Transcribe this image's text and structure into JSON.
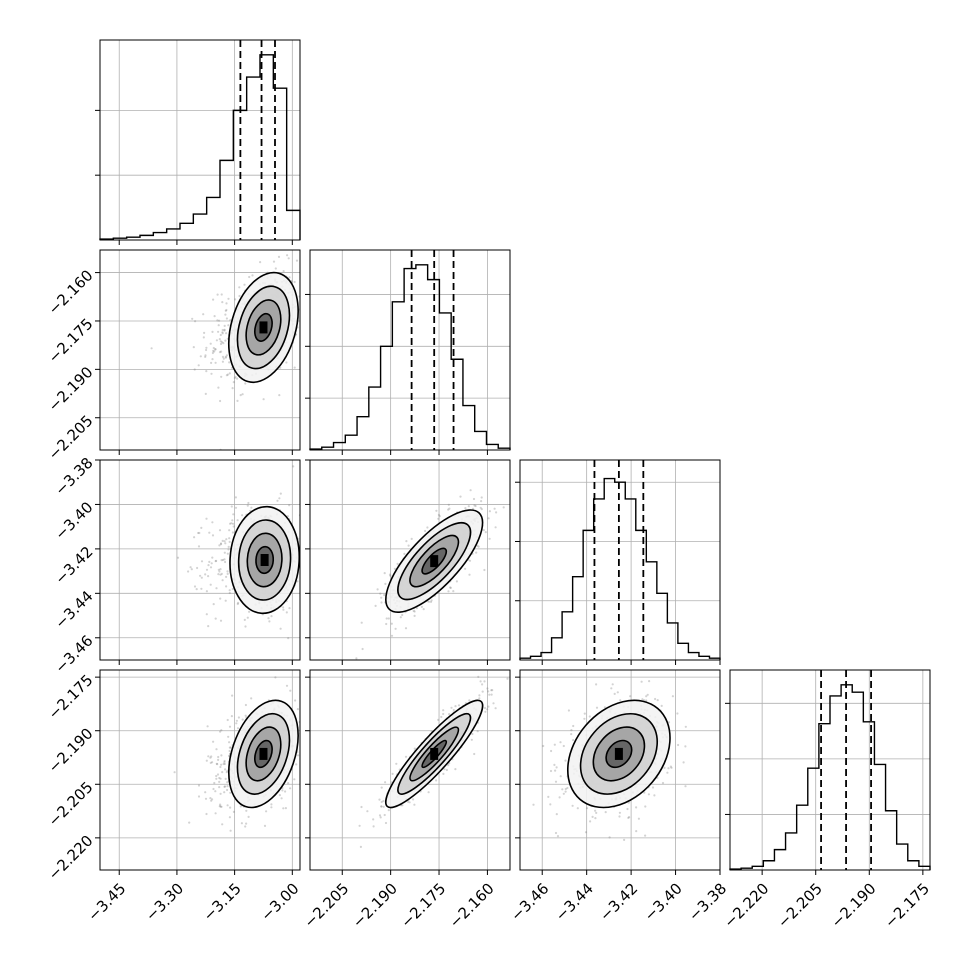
{
  "chart_data": {
    "type": "corner",
    "n_params": 4,
    "params": [
      {
        "range": [
          -3.5,
          -2.98
        ],
        "ticks": [
          -3.45,
          -3.3,
          -3.15,
          -3.0
        ],
        "tick_labels": [
          "−3.45",
          "−3.30",
          "−3.15",
          "−3.00"
        ],
        "quantiles": [
          -3.135,
          -3.08,
          -3.045
        ],
        "median": -3.08,
        "hist": [
          0.005,
          0.01,
          0.015,
          0.025,
          0.04,
          0.06,
          0.09,
          0.14,
          0.23,
          0.43,
          0.7,
          0.88,
          1.0,
          0.82,
          0.16
        ],
        "hist_ticks": [
          0.35,
          0.7
        ]
      },
      {
        "range": [
          -2.215,
          -2.153
        ],
        "ticks": [
          -2.205,
          -2.19,
          -2.175,
          -2.16
        ],
        "tick_labels": [
          "−2.205",
          "−2.190",
          "−2.175",
          "−2.160"
        ],
        "quantiles": [
          -2.1835,
          -2.1765,
          -2.1705
        ],
        "median": -2.1765,
        "hist": [
          0.005,
          0.015,
          0.04,
          0.08,
          0.18,
          0.34,
          0.56,
          0.8,
          0.98,
          1.0,
          0.92,
          0.74,
          0.49,
          0.24,
          0.1,
          0.03,
          0.01
        ],
        "hist_ticks": [
          0.28,
          0.56,
          0.84
        ]
      },
      {
        "range": [
          -3.47,
          -3.38
        ],
        "ticks": [
          -3.46,
          -3.44,
          -3.42,
          -3.4,
          -3.38
        ],
        "tick_labels": [
          "−3.46",
          "−3.44",
          "−3.42",
          "−3.40",
          "−3.38"
        ],
        "quantiles": [
          -3.4365,
          -3.4255,
          -3.4145
        ],
        "median": -3.4255,
        "hist": [
          0.01,
          0.02,
          0.04,
          0.12,
          0.26,
          0.45,
          0.7,
          0.87,
          0.98,
          0.96,
          0.87,
          0.7,
          0.53,
          0.36,
          0.2,
          0.09,
          0.04,
          0.02,
          0.01
        ],
        "hist_ticks": [
          0.32,
          0.64,
          0.96
        ]
      },
      {
        "range": [
          -2.229,
          -2.173
        ],
        "ticks": [
          -2.22,
          -2.205,
          -2.19,
          -2.175
        ],
        "tick_labels": [
          "−2.220",
          "−2.205",
          "−2.190",
          "−2.175"
        ],
        "quantiles": [
          -2.2035,
          -2.1965,
          -2.1895
        ],
        "median": -2.1965,
        "hist": [
          0.005,
          0.01,
          0.02,
          0.05,
          0.11,
          0.2,
          0.35,
          0.55,
          0.79,
          0.94,
          1.0,
          0.96,
          0.8,
          0.57,
          0.32,
          0.14,
          0.05,
          0.02
        ],
        "hist_ticks": [
          0.3,
          0.6,
          0.9
        ]
      }
    ],
    "pairs": [
      {
        "x": 0,
        "y": 1,
        "center": [
          -3.075,
          -2.177
        ],
        "sigma": [
          0.045,
          0.0085
        ],
        "corr": 0.3
      },
      {
        "x": 0,
        "y": 2,
        "center": [
          -3.072,
          -3.425
        ],
        "sigma": [
          0.045,
          0.012
        ],
        "corr": 0.05
      },
      {
        "x": 1,
        "y": 2,
        "center": [
          -2.1765,
          -3.4255
        ],
        "sigma": [
          0.0075,
          0.0115
        ],
        "corr": 0.75
      },
      {
        "x": 0,
        "y": 3,
        "center": [
          -3.075,
          -2.1965
        ],
        "sigma": [
          0.045,
          0.0075
        ],
        "corr": 0.35
      },
      {
        "x": 1,
        "y": 3,
        "center": [
          -2.1765,
          -2.1965
        ],
        "sigma": [
          0.0075,
          0.0075
        ],
        "corr": 0.9
      },
      {
        "x": 2,
        "y": 3,
        "center": [
          -3.4255,
          -2.1965
        ],
        "sigma": [
          0.0115,
          0.0075
        ],
        "corr": 0.3
      }
    ],
    "contour_levels_sigma": [
      0.5,
      1.0,
      1.5,
      2.0
    ],
    "scatter_points_per_panel": 600,
    "grid": true,
    "colors": {
      "line": "#000000",
      "grid": "#b0b0b0",
      "points": "#808080",
      "density": "#000000"
    }
  }
}
